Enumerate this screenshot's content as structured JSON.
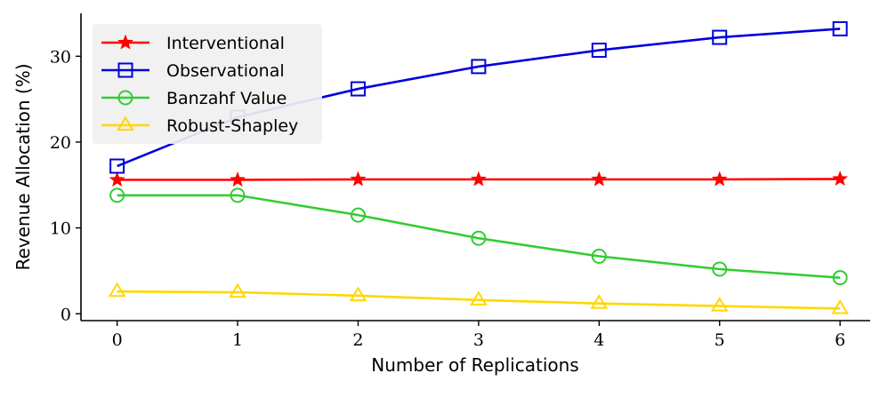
{
  "chart_data": {
    "type": "line",
    "title": "",
    "xlabel": "Number of Replications",
    "ylabel": "Revenue Allocation (%)",
    "x": [
      0,
      1,
      2,
      3,
      4,
      5,
      6
    ],
    "xlim": [
      -0.3,
      6.25
    ],
    "ylim": [
      -0.8,
      35
    ],
    "xticks": [
      0,
      1,
      2,
      3,
      4,
      5,
      6
    ],
    "yticks": [
      0,
      10,
      20,
      30
    ],
    "grid": false,
    "legend_position": "top-left",
    "series": [
      {
        "name": "Interventional",
        "color": "#ff0000",
        "marker": "star",
        "values": [
          15.6,
          15.6,
          15.65,
          15.65,
          15.65,
          15.65,
          15.7
        ]
      },
      {
        "name": "Observational",
        "color": "#0000dd",
        "marker": "square",
        "values": [
          17.2,
          22.9,
          26.2,
          28.8,
          30.7,
          32.2,
          33.2
        ]
      },
      {
        "name": "Banzahf Value",
        "color": "#33cc33",
        "marker": "circle",
        "values": [
          13.8,
          13.8,
          11.5,
          8.8,
          6.7,
          5.2,
          4.2
        ]
      },
      {
        "name": "Robust-Shapley",
        "color": "#ffd700",
        "marker": "triangle",
        "values": [
          2.6,
          2.5,
          2.1,
          1.6,
          1.2,
          0.9,
          0.6
        ]
      }
    ]
  }
}
